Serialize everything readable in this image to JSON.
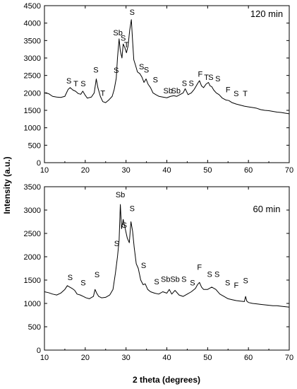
{
  "figure": {
    "shared_ylabel": "Intensity (a.u.)",
    "xlabel": "2 theta (degrees)"
  },
  "chart_data": [
    {
      "type": "line",
      "panel_label": "120 min",
      "xlim": [
        10,
        70
      ],
      "ylim": [
        0,
        4500
      ],
      "xticks": [
        10,
        20,
        30,
        40,
        50,
        60,
        70
      ],
      "yticks": [
        0,
        500,
        1000,
        1500,
        2000,
        2500,
        3000,
        3500,
        4000,
        4500
      ],
      "grid": false,
      "series": [
        {
          "x": [
            10,
            11,
            12,
            13,
            14,
            15,
            15.8,
            16.3,
            17,
            17.6,
            18.3,
            18.9,
            19.4,
            19.9,
            20.5,
            21.5,
            22.2,
            22.7,
            23.1,
            23.7,
            24.3,
            25,
            25.8,
            26.6,
            27.1,
            27.6,
            27.9,
            28.3,
            28.6,
            29,
            29.3,
            29.7,
            30.1,
            30.5,
            30.9,
            31.3,
            31.6,
            31.9,
            32.3,
            32.8,
            33.4,
            33.9,
            34.4,
            34.9,
            35.4,
            36,
            36.6,
            37.3,
            38.1,
            39,
            40,
            40.9,
            41.7,
            42.4,
            43.2,
            44,
            44.5,
            45.2,
            46,
            46.7,
            47.2,
            47.6,
            48,
            48.5,
            49,
            49.6,
            50.2,
            50.6,
            51,
            51.5,
            52.1,
            52.8,
            53.6,
            54.4,
            55.2,
            56,
            57,
            58,
            59,
            60,
            61,
            62,
            63,
            64,
            65,
            66,
            67,
            68,
            69,
            70
          ],
          "y": [
            2000,
            1980,
            1900,
            1880,
            1870,
            1900,
            2100,
            2150,
            2080,
            2050,
            1980,
            1960,
            2050,
            1950,
            1850,
            1880,
            2000,
            2400,
            2150,
            1900,
            1750,
            1720,
            1800,
            1900,
            2100,
            2420,
            3000,
            3550,
            3200,
            3000,
            3400,
            3300,
            3150,
            3350,
            3800,
            4100,
            3500,
            2950,
            2800,
            2600,
            2550,
            2450,
            2300,
            2400,
            2250,
            2150,
            2000,
            1950,
            1900,
            1880,
            1860,
            1900,
            1920,
            1900,
            1950,
            2000,
            2120,
            1950,
            2000,
            2100,
            2200,
            2280,
            2350,
            2200,
            2150,
            2250,
            2300,
            2200,
            2180,
            2080,
            2000,
            1950,
            1850,
            1800,
            1780,
            1720,
            1680,
            1650,
            1620,
            1600,
            1580,
            1560,
            1520,
            1500,
            1490,
            1470,
            1450,
            1440,
            1420,
            1400
          ]
        }
      ],
      "peak_labels": [
        {
          "text": "S",
          "x": 16.0,
          "y": 2270
        },
        {
          "text": "T",
          "x": 17.7,
          "y": 2190
        },
        {
          "text": "S",
          "x": 19.5,
          "y": 2190
        },
        {
          "text": "S",
          "x": 22.6,
          "y": 2580
        },
        {
          "text": "T",
          "x": 24.3,
          "y": 1920
        },
        {
          "text": "S",
          "x": 27.6,
          "y": 2570
        },
        {
          "text": "Sb",
          "x": 28.0,
          "y": 3650
        },
        {
          "text": "S",
          "x": 29.3,
          "y": 3500
        },
        {
          "text": "T",
          "x": 30.1,
          "y": 3300
        },
        {
          "text": "S",
          "x": 31.5,
          "y": 4240
        },
        {
          "text": "S",
          "x": 33.8,
          "y": 2680
        },
        {
          "text": "S",
          "x": 35.0,
          "y": 2580
        },
        {
          "text": "S",
          "x": 37.2,
          "y": 2300
        },
        {
          "text": "Sb",
          "x": 40.3,
          "y": 1990
        },
        {
          "text": "Sb",
          "x": 42.2,
          "y": 1990
        },
        {
          "text": "S",
          "x": 44.3,
          "y": 2200
        },
        {
          "text": "S",
          "x": 46.0,
          "y": 2200
        },
        {
          "text": "F",
          "x": 48.2,
          "y": 2460
        },
        {
          "text": "T",
          "x": 49.7,
          "y": 2370
        },
        {
          "text": "S",
          "x": 50.8,
          "y": 2370
        },
        {
          "text": "S",
          "x": 52.5,
          "y": 2330
        },
        {
          "text": "F",
          "x": 55.0,
          "y": 2020
        },
        {
          "text": "S",
          "x": 57.0,
          "y": 1910
        },
        {
          "text": "T",
          "x": 59.2,
          "y": 1910
        }
      ]
    },
    {
      "type": "line",
      "panel_label": "60 min",
      "xlim": [
        10,
        70
      ],
      "ylim": [
        0,
        3500
      ],
      "xticks": [
        10,
        20,
        30,
        40,
        50,
        60,
        70
      ],
      "yticks": [
        0,
        500,
        1000,
        1500,
        2000,
        2500,
        3000,
        3500
      ],
      "grid": false,
      "series": [
        {
          "x": [
            10,
            11,
            12,
            13,
            14,
            15,
            15.6,
            16.2,
            16.8,
            17.4,
            18,
            18.8,
            19.5,
            20.2,
            21,
            22,
            22.4,
            22.8,
            23.3,
            24,
            25,
            26,
            26.8,
            27.4,
            27.9,
            28.3,
            28.6,
            28.9,
            29.3,
            29.8,
            30.3,
            30.8,
            31.2,
            31.6,
            32,
            32.5,
            33,
            33.6,
            34.2,
            34.7,
            35.3,
            36,
            37,
            38,
            39,
            40,
            40.6,
            41.2,
            42,
            43,
            44,
            45,
            46,
            47,
            47.5,
            48,
            48.5,
            49,
            50,
            51,
            52,
            53,
            54,
            55,
            56,
            57,
            58,
            59,
            59.3,
            59.6,
            60,
            61,
            62,
            63,
            64,
            65,
            66,
            67,
            68,
            69,
            70
          ],
          "y": [
            1250,
            1230,
            1200,
            1180,
            1220,
            1300,
            1380,
            1350,
            1320,
            1280,
            1200,
            1180,
            1150,
            1120,
            1100,
            1150,
            1300,
            1220,
            1150,
            1120,
            1130,
            1180,
            1300,
            1650,
            2000,
            2350,
            3120,
            2600,
            2800,
            2600,
            2400,
            2300,
            2750,
            2550,
            2200,
            1850,
            1750,
            1500,
            1400,
            1420,
            1300,
            1250,
            1220,
            1200,
            1250,
            1220,
            1300,
            1200,
            1280,
            1180,
            1150,
            1200,
            1250,
            1320,
            1400,
            1450,
            1350,
            1300,
            1300,
            1350,
            1300,
            1200,
            1150,
            1100,
            1080,
            1060,
            1050,
            1040,
            1150,
            1050,
            1020,
            1000,
            990,
            980,
            970,
            960,
            950,
            950,
            940,
            930,
            920
          ]
        }
      ],
      "peak_labels": [
        {
          "text": "S",
          "x": 16.3,
          "y": 1500
        },
        {
          "text": "S",
          "x": 19.5,
          "y": 1390
        },
        {
          "text": "S",
          "x": 22.9,
          "y": 1560
        },
        {
          "text": "S",
          "x": 27.7,
          "y": 2230
        },
        {
          "text": "Sb",
          "x": 28.6,
          "y": 3270
        },
        {
          "text": "S",
          "x": 29.6,
          "y": 2620
        },
        {
          "text": "S",
          "x": 31.5,
          "y": 2980
        },
        {
          "text": "S",
          "x": 34.3,
          "y": 1760
        },
        {
          "text": "S",
          "x": 37.5,
          "y": 1410
        },
        {
          "text": "Sb",
          "x": 39.7,
          "y": 1460
        },
        {
          "text": "Sb",
          "x": 42.0,
          "y": 1460
        },
        {
          "text": "S",
          "x": 44.2,
          "y": 1460
        },
        {
          "text": "S",
          "x": 46.3,
          "y": 1390
        },
        {
          "text": "F",
          "x": 48.0,
          "y": 1720
        },
        {
          "text": "S",
          "x": 50.5,
          "y": 1570
        },
        {
          "text": "S",
          "x": 52.3,
          "y": 1570
        },
        {
          "text": "S",
          "x": 54.9,
          "y": 1390
        },
        {
          "text": "F",
          "x": 57.0,
          "y": 1330
        },
        {
          "text": "S",
          "x": 59.3,
          "y": 1430
        }
      ]
    }
  ]
}
